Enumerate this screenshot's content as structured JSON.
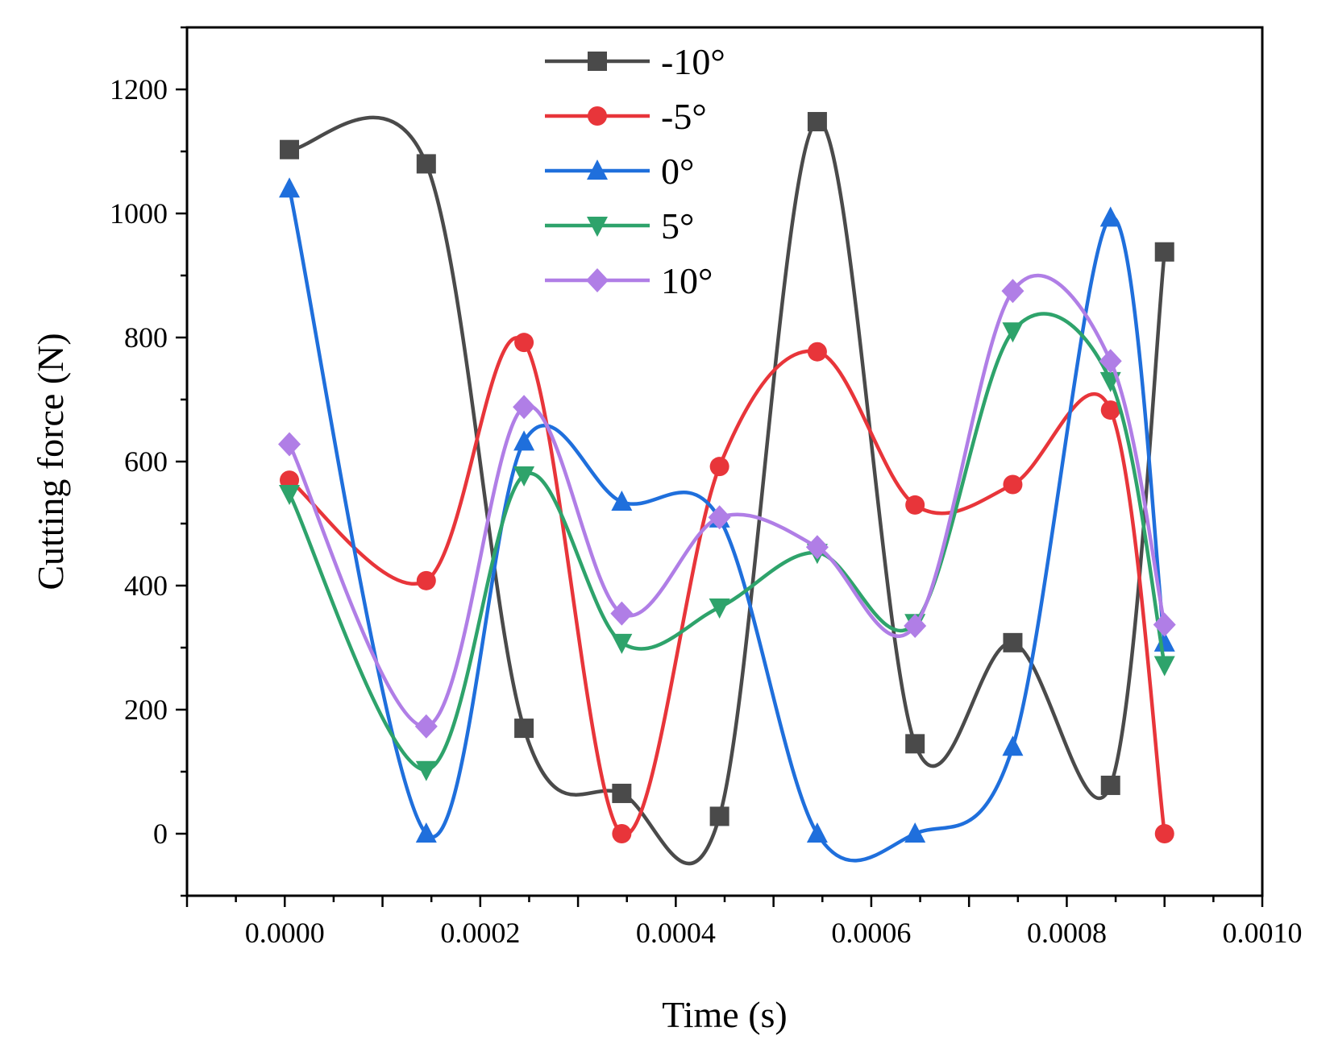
{
  "chart_data": {
    "type": "line",
    "title": "",
    "xlabel": "Time (s)",
    "ylabel": "Cutting force (N)",
    "xlim": [
      -0.0001,
      0.001
    ],
    "ylim": [
      -100,
      1300
    ],
    "xticks": [
      "0.0000",
      "0.0002",
      "0.0004",
      "0.0006",
      "0.0008",
      "0.0010"
    ],
    "xtick_values": [
      0,
      0.0002,
      0.0004,
      0.0006,
      0.0008,
      0.001
    ],
    "yticks": [
      "0",
      "200",
      "400",
      "600",
      "800",
      "1000",
      "1200"
    ],
    "ytick_values": [
      0,
      200,
      400,
      600,
      800,
      1000,
      1200
    ],
    "grid": false,
    "legend_position": "top-center",
    "x": [
      4.75e-06,
      0.00014475,
      0.00024475,
      0.00034475,
      0.00044475,
      0.00054475,
      0.00064475,
      0.00074475,
      0.00084475,
      0.0009
    ],
    "series": [
      {
        "name": "-10°",
        "color": "#4a4a4a",
        "marker": "square",
        "values": [
          1103,
          1080,
          170,
          65,
          28,
          1148,
          145,
          308,
          78,
          938
        ]
      },
      {
        "name": "-5°",
        "color": "#e8353a",
        "marker": "circle",
        "values": [
          570,
          408,
          792,
          0,
          592,
          777,
          530,
          563,
          683,
          0
        ]
      },
      {
        "name": "0°",
        "color": "#1f6fdc",
        "marker": "triangle-up",
        "values": [
          1040,
          0,
          632,
          535,
          508,
          0,
          0,
          140,
          993,
          308
        ]
      },
      {
        "name": "5°",
        "color": "#2ea36b",
        "marker": "triangle-down",
        "values": [
          548,
          103,
          578,
          308,
          365,
          453,
          340,
          810,
          730,
          272
        ]
      },
      {
        "name": "10°",
        "color": "#b07ee6",
        "marker": "diamond",
        "values": [
          628,
          173,
          688,
          355,
          510,
          462,
          335,
          875,
          762,
          337
        ]
      }
    ]
  }
}
